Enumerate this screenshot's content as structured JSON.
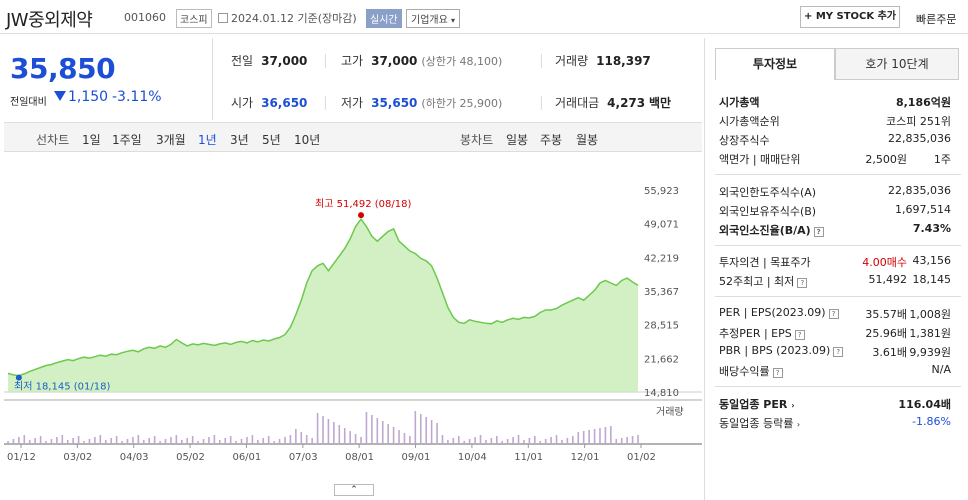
{
  "header": {
    "title": "JW중외제약",
    "code": "001060",
    "market": "코스피",
    "date": "2024.01.12",
    "basis": "기준(장마감)",
    "realtime": "실시간",
    "company_info": "기업개요",
    "mystock": "+ MY STOCK 추가",
    "quick_order": "빠른주문"
  },
  "price": {
    "current": "35,850",
    "change_label": "전일대비",
    "change": "1,150",
    "change_pct": "-3.11%"
  },
  "stats": {
    "prev_label": "전일",
    "prev": "37,000",
    "high_label": "고가",
    "high": "37,000",
    "upper_limit": "(상한가 48,100)",
    "volume_label": "거래량",
    "volume": "118,397",
    "open_label": "시가",
    "open": "36,650",
    "low_label": "저가",
    "low": "35,650",
    "lower_limit": "(하한가 25,900)",
    "amount_label": "거래대금",
    "amount": "4,273",
    "amount_unit": "백만"
  },
  "tabs": {
    "line_label": "선차트",
    "line": [
      "1일",
      "1주일",
      "3개월",
      "1년",
      "3년",
      "5년",
      "10년"
    ],
    "selected": "1년",
    "candle_label": "봉차트",
    "candle": [
      "일봉",
      "주봉",
      "월봉"
    ]
  },
  "chart_data": {
    "type": "area",
    "y_ticks": [
      "55,923",
      "49,071",
      "42,219",
      "35,367",
      "28,515",
      "21,662",
      "14,810"
    ],
    "ylim": [
      14810,
      55923
    ],
    "x_ticks": [
      "01/12",
      "03/02",
      "04/03",
      "05/02",
      "06/01",
      "07/03",
      "08/01",
      "09/01",
      "10/04",
      "11/01",
      "12/01",
      "01/02"
    ],
    "high_label": "최고 51,492 (08/18)",
    "low_label": "최저 18,145 (01/18)",
    "volume_label": "거래량",
    "colors": {
      "line": "#6cc94c",
      "fill": "#c7ecb5",
      "high": "#d40000",
      "low": "#1c5fc8"
    },
    "values": [
      18600,
      18300,
      18145,
      18500,
      19000,
      19400,
      19800,
      20200,
      20400,
      20800,
      21100,
      21400,
      21200,
      21600,
      21900,
      21700,
      22000,
      22300,
      22100,
      22500,
      22400,
      22800,
      23100,
      23300,
      23000,
      23600,
      23900,
      23700,
      24200,
      23900,
      24500,
      25500,
      24800,
      24200,
      24600,
      24400,
      24700,
      24500,
      24300,
      24600,
      24800,
      24500,
      24900,
      25100,
      24800,
      25300,
      25000,
      25400,
      25200,
      25600,
      25900,
      26500,
      28000,
      30500,
      33500,
      37000,
      39500,
      40500,
      41000,
      39500,
      41000,
      42500,
      44000,
      46000,
      48500,
      50000,
      48500,
      46500,
      45500,
      46500,
      47500,
      48000,
      45500,
      44500,
      43500,
      43000,
      42000,
      41500,
      40500,
      38000,
      35000,
      32000,
      30000,
      29000,
      28800,
      29500,
      29200,
      29000,
      28800,
      28700,
      29300,
      29000,
      29500,
      29800,
      29600,
      30000,
      29900,
      30200,
      31000,
      31500,
      31500,
      31800,
      32500,
      33000,
      33500,
      34000,
      33500,
      34500,
      35500,
      37000,
      37500,
      37000,
      36500,
      37500,
      38000,
      37200,
      36500
    ]
  },
  "side": {
    "tab_active": "투자정보",
    "tab_other": "호가 10단계",
    "market_cap_label": "시가총액",
    "market_cap": "8,186억원",
    "rank_label": "시가총액순위",
    "rank": "코스피 251위",
    "shares_label": "상장주식수",
    "shares": "22,835,036",
    "par_label": "액면가 | 매매단위",
    "par": "2,500원",
    "unit": "1주",
    "foreign_limit_label": "외국인한도주식수(A)",
    "foreign_limit": "22,835,036",
    "foreign_hold_label": "외국인보유주식수(B)",
    "foreign_hold": "1,697,514",
    "foreign_ratio_label": "외국인소진율(B/A)",
    "foreign_ratio": "7.43%",
    "opinion_label": "투자의견 | 목표주가",
    "opinion": "4.00매수",
    "target": "43,156",
    "w52_label": "52주최고 | 최저",
    "w52_high": "51,492",
    "w52_low": "18,145",
    "per_label": "PER | EPS(2023.09)",
    "per": "35.57배",
    "eps": "1,008원",
    "est_per_label": "추정PER | EPS",
    "est_per": "25.96배",
    "est_eps": "1,381원",
    "pbr_label": "PBR | BPS (2023.09)",
    "pbr": "3.61배",
    "bps": "9,939원",
    "div_label": "배당수익률",
    "div": "N/A",
    "peer_per_label": "동일업종 PER",
    "peer_per": "116.04배",
    "peer_rate_label": "동일업종 등락률",
    "peer_rate": "-1.86%"
  }
}
